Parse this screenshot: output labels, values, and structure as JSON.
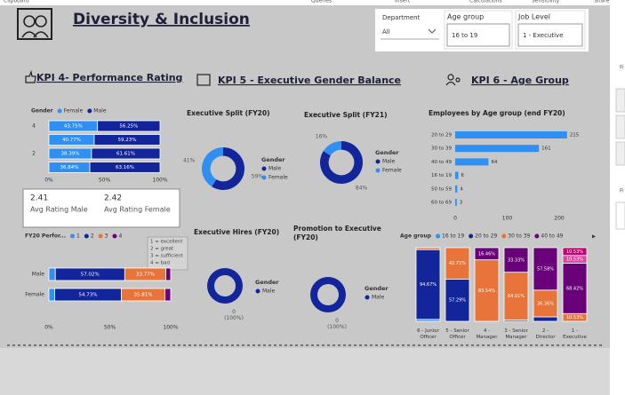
{
  "ribbon": [
    "Clipboard",
    "Queries",
    "Insert",
    "Calculations",
    "Sensitivity",
    "Share"
  ],
  "side_panel": [
    "Fi",
    "Fi"
  ],
  "header": {
    "title": "Diversity & Inclusion"
  },
  "filters": [
    {
      "label": "Department",
      "value": "All"
    },
    {
      "label": "Age group",
      "value": "16 to 19"
    },
    {
      "label": "Job Level",
      "value": "1 - Executive"
    }
  ],
  "sections": [
    "KPI 4- Performance Rating",
    "KPI 5 - Executive Gender Balance",
    "KPI 6 - Age Group"
  ],
  "card": [
    {
      "value": 2.41,
      "label": "Avg Rating Male"
    },
    {
      "value": 2.42,
      "label": "Avg Rating Female"
    }
  ],
  "chart_data": [
    {
      "type": "bar",
      "orientation": "horizontal",
      "stacked": true,
      "legend_title": "Gender",
      "categories": [
        "4",
        null,
        "2",
        null
      ],
      "series": [
        {
          "name": "Female",
          "color": "#2f8ff2",
          "values": [
            43.75,
            40.77,
            38.39,
            36.84
          ],
          "value_labels": [
            "43.75%",
            "40.77%",
            "38.39%",
            "36.84%"
          ]
        },
        {
          "name": "Male",
          "color": "#13259a",
          "values": [
            56.25,
            59.23,
            61.61,
            63.16
          ],
          "value_labels": [
            "56.25%",
            "59.23%",
            "61.61%",
            "63.16%"
          ]
        }
      ],
      "xlim": [
        0,
        100
      ],
      "xticks": [
        {
          "value": 0,
          "label": "0%"
        },
        {
          "value": 50,
          "label": "50%"
        },
        {
          "value": 100,
          "label": "100%"
        }
      ]
    },
    {
      "type": "bar",
      "orientation": "horizontal",
      "stacked": true,
      "legend_title": "FY20 Perfor...",
      "annotations": [
        "1 = excellent",
        "2 = great",
        "3 = sufficient",
        "4 = bad"
      ],
      "categories": [
        "Male",
        "Female"
      ],
      "series": [
        {
          "name": "1",
          "color": "#2f8ff2",
          "values": [
            5.26,
            4.73
          ],
          "value_labels": [
            null,
            null
          ]
        },
        {
          "name": "2",
          "color": "#13259a",
          "values": [
            57.02,
            54.73
          ],
          "value_labels": [
            "57.02%",
            "54.73%"
          ]
        },
        {
          "name": "3",
          "color": "#e8743b",
          "values": [
            33.77,
            35.81
          ],
          "value_labels": [
            "33.77%",
            "35.81%"
          ]
        },
        {
          "name": "4",
          "color": "#6b007b",
          "values": [
            3.95,
            4.73
          ],
          "value_labels": [
            null,
            null
          ]
        }
      ],
      "xlim": [
        0,
        100
      ],
      "xticks": [
        {
          "value": 0,
          "label": "0%"
        },
        {
          "value": 50,
          "label": "50%"
        },
        {
          "value": 100,
          "label": "100%"
        }
      ]
    },
    {
      "type": "pie",
      "donut": true,
      "title": "Executive Split (FY20)",
      "legend_title": "Gender",
      "categories": [
        "Male",
        "Female"
      ],
      "colors": [
        "#13259a",
        "#2f8ff2"
      ],
      "values": [
        59,
        41
      ],
      "value_labels": [
        "59%",
        "41%"
      ]
    },
    {
      "type": "pie",
      "donut": true,
      "title": "Executive Split (FY21)",
      "legend_title": "Gender",
      "categories": [
        "Male",
        "Female"
      ],
      "colors": [
        "#13259a",
        "#2f8ff2"
      ],
      "values": [
        84,
        16
      ],
      "value_labels": [
        "84%",
        "16%"
      ]
    },
    {
      "type": "pie",
      "donut": true,
      "title": "Executive Hires (FY20)",
      "legend_title": "Gender",
      "categories": [
        "Male"
      ],
      "colors": [
        "#13259a"
      ],
      "values": [
        100
      ],
      "value_labels": [
        "0 (100%)"
      ]
    },
    {
      "type": "pie",
      "donut": true,
      "title": "Promotion to Executive (FY20)",
      "legend_title": "Gender",
      "categories": [
        "Male"
      ],
      "colors": [
        "#13259a"
      ],
      "values": [
        100
      ],
      "value_labels": [
        "0 (100%)"
      ]
    },
    {
      "type": "bar",
      "orientation": "horizontal",
      "title": "Employees by Age group (end FY20)",
      "categories": [
        "20 to 29",
        "30 to 39",
        "40 to 49",
        "16 to 19",
        "50 to 59",
        "60 to 69"
      ],
      "values": [
        215,
        161,
        64,
        6,
        4,
        3
      ],
      "color": "#2f8ff2",
      "xlim": [
        0,
        235
      ],
      "xticks": [
        0,
        100,
        200
      ]
    },
    {
      "type": "bar",
      "orientation": "vertical",
      "stacked": true,
      "legend_title": "Age group",
      "categories": [
        "6 - Junior Officer",
        "5 - Senior Officer",
        "4 - Manager",
        "3 - Senior Manager",
        "2 - Director",
        "1 - Executive"
      ],
      "series": [
        {
          "name": "16 to 19",
          "color": "#2f8ff2",
          "values": [
            2.67,
            0,
            0,
            0,
            0,
            0
          ],
          "value_labels": [
            null,
            null,
            null,
            null,
            null,
            null
          ]
        },
        {
          "name": "20 to 29",
          "color": "#13259a",
          "values": [
            94.67,
            57.29,
            0,
            1.75,
            6.06,
            0
          ],
          "value_labels": [
            "94.67%",
            "57.29%",
            null,
            null,
            null,
            null
          ]
        },
        {
          "name": "30 to 39",
          "color": "#e8743b",
          "values": [
            2.66,
            42.71,
            83.54,
            64.91,
            36.36,
            10.53
          ],
          "value_labels": [
            null,
            "42.71%",
            "83.54%",
            "64.91%",
            "36.36%",
            "10.53%"
          ]
        },
        {
          "name": "40 to 49",
          "color": "#6b007b",
          "values": [
            0,
            0,
            16.46,
            33.33,
            57.58,
            68.42
          ],
          "value_labels": [
            null,
            null,
            "16.46%",
            "33.33%",
            "57.58%",
            "68.42%"
          ]
        },
        {
          "name": null,
          "color": "#e044a7",
          "values": [
            0,
            0,
            0,
            0,
            0,
            10.53
          ],
          "value_labels": [
            null,
            null,
            null,
            null,
            null,
            "10.53%"
          ]
        },
        {
          "name": null,
          "color": "#c3006f",
          "values": [
            0,
            0,
            0,
            0,
            0,
            10.53
          ],
          "value_labels": [
            null,
            null,
            null,
            null,
            null,
            "10.53%"
          ]
        }
      ],
      "ylim": [
        0,
        100
      ]
    }
  ]
}
